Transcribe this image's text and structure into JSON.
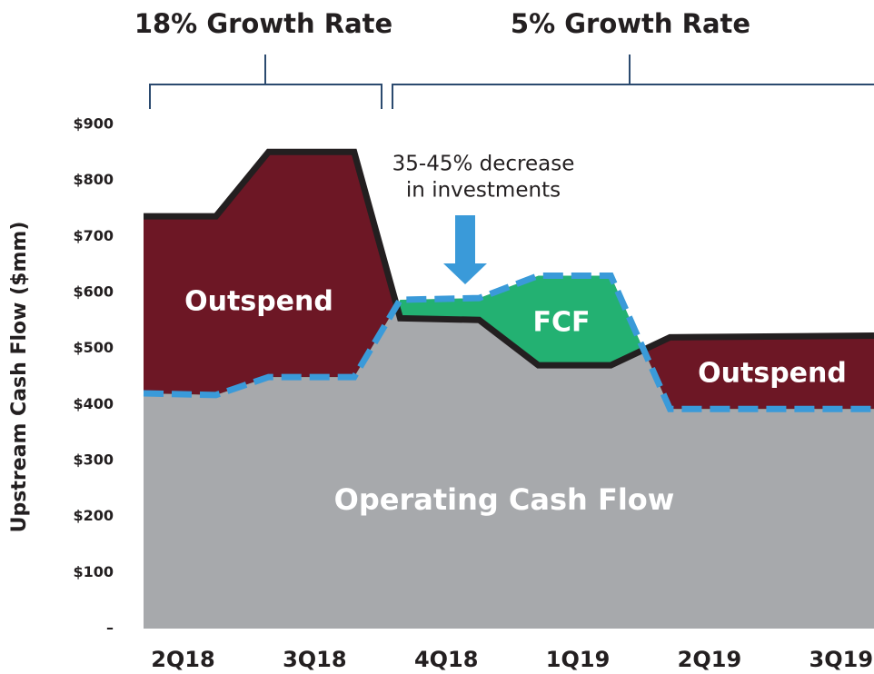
{
  "chart_data": {
    "type": "area",
    "y_label": "Upstream Cash Flow ($mm)",
    "header_annotations": [
      "18% Growth Rate",
      "5% Growth Rate"
    ],
    "callout": [
      "35-45% decrease",
      "in investments"
    ],
    "area_labels": [
      "Outspend",
      "FCF",
      "Outspend",
      "Operating Cash Flow"
    ],
    "x": [
      -0.3,
      0.25,
      0.65,
      1.3,
      1.65,
      2.25,
      2.7,
      3.25,
      3.7,
      5.25
    ],
    "series": [
      {
        "color": "#231f20",
        "values": [
          736,
          736,
          851,
          851,
          554,
          551,
          470,
          470,
          520,
          523
        ]
      },
      {
        "color": "#3a9ad9",
        "values": [
          420,
          417,
          449,
          449,
          587,
          590,
          630,
          630,
          392,
          392
        ]
      }
    ],
    "colors": {
      "operating": "#a7a9ac",
      "outspend": "#6d1725",
      "fcf": "#23b172"
    },
    "xlim": [
      -0.3,
      5.25
    ],
    "xticks": [
      {
        "value": 0,
        "label": "2Q18"
      },
      {
        "value": 1,
        "label": "3Q18"
      },
      {
        "value": 2,
        "label": "4Q18"
      },
      {
        "value": 3,
        "label": "1Q19"
      },
      {
        "value": 4,
        "label": "2Q19"
      },
      {
        "value": 5,
        "label": "3Q19"
      }
    ],
    "ylim": [
      0,
      900
    ],
    "yticks": [
      {
        "value": 0,
        "label": "–"
      },
      {
        "value": 100,
        "label": "$100"
      },
      {
        "value": 200,
        "label": "$200"
      },
      {
        "value": 300,
        "label": "$300"
      },
      {
        "value": 400,
        "label": "$400"
      },
      {
        "value": 500,
        "label": "$500"
      },
      {
        "value": 600,
        "label": "$600"
      },
      {
        "value": 700,
        "label": "$700"
      },
      {
        "value": 800,
        "label": "$800"
      },
      {
        "value": 900,
        "label": "$900"
      }
    ]
  }
}
